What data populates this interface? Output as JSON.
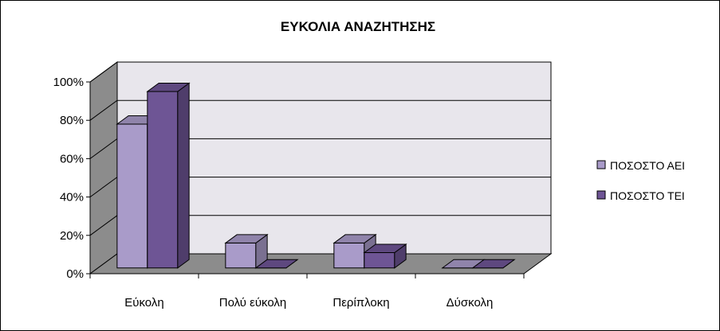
{
  "chart_data": {
    "type": "bar",
    "title": "ΕΥΚΟΛΙΑ ΑΝΑΖΗΤΗΣΗΣ",
    "categories": [
      "Εύκολη",
      "Πολύ εύκολη",
      "Περίπλοκη",
      "Δύσκολη"
    ],
    "series": [
      {
        "name": "ΠΟΣΟΣΤΟ ΑΕΙ",
        "values": [
          0.75,
          0.13,
          0.13,
          0.0
        ],
        "color": "#A99BC9"
      },
      {
        "name": "ΠΟΣΟΣΤΟ ΤΕΙ",
        "values": [
          0.92,
          0.0,
          0.08,
          0.0
        ],
        "color": "#6E5595"
      }
    ],
    "y_ticks": [
      "0%",
      "20%",
      "40%",
      "60%",
      "80%",
      "100%"
    ],
    "ylim": [
      0,
      1
    ],
    "grid": true,
    "three_d": true,
    "legend_position": "right",
    "wall_color": "#E8E6EC",
    "side_wall_color": "#8C8C8C",
    "floor_color": "#8C8C8C"
  }
}
